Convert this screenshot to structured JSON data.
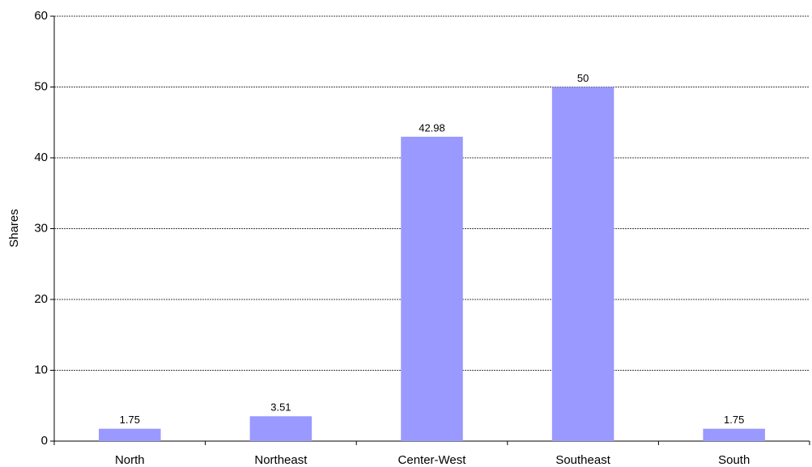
{
  "chart_data": {
    "type": "bar",
    "y_label": "Shares",
    "categories": [
      "North",
      "Northeast",
      "Center-West",
      "Southeast",
      "South"
    ],
    "values": [
      1.75,
      3.51,
      42.98,
      50,
      1.75
    ],
    "color": "#9999ff",
    "ylim": [
      0,
      60
    ],
    "yticks": [
      0,
      10,
      20,
      30,
      40,
      50,
      60
    ],
    "grid": true
  }
}
